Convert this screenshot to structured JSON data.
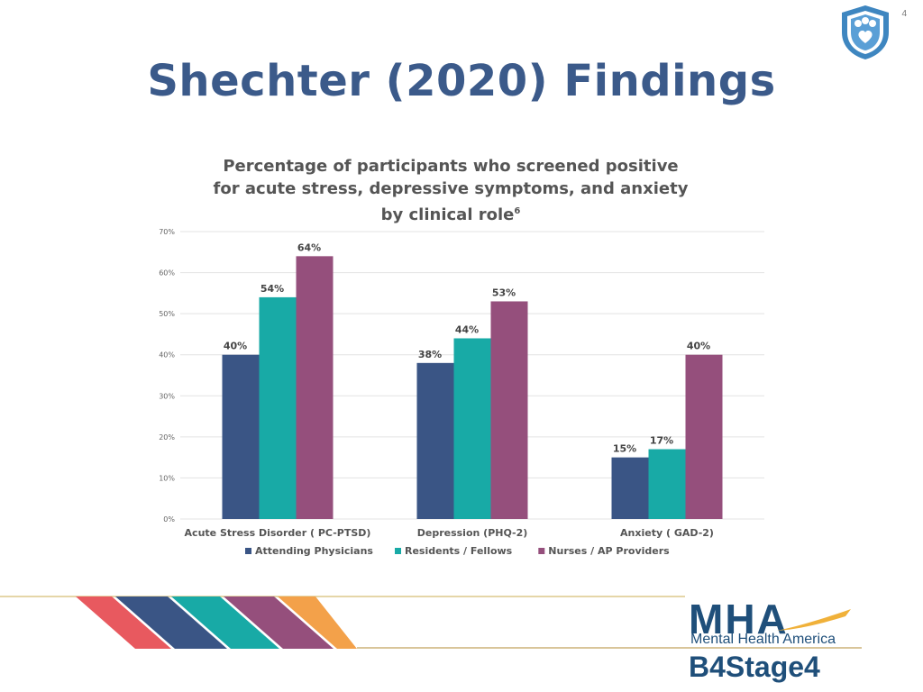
{
  "slide": {
    "page_number": "4",
    "title": "Shechter (2020) Findings"
  },
  "chart_title": {
    "text": "Percentage of participants who screened positive for acute stress, depressive symptoms, and anxiety by clinical role",
    "superscript": "6"
  },
  "logo": {
    "mark": "MHA",
    "tagline": "Mental Health America",
    "program": "B4Stage4"
  },
  "icons": {
    "top_right": "shield-heart-icon"
  },
  "colors": {
    "title": "#3b5a8a",
    "attending": "#3a5585",
    "residents": "#18aaa6",
    "nurses": "#954f7c"
  },
  "chart_data": {
    "type": "bar",
    "categories": [
      "Acute Stress Disorder ( PC-PTSD)",
      "Depression (PHQ-2)",
      "Anxiety ( GAD-2)"
    ],
    "series": [
      {
        "name": "Attending Physicians",
        "values": [
          40,
          38,
          15
        ]
      },
      {
        "name": "Residents / Fellows",
        "values": [
          54,
          44,
          17
        ]
      },
      {
        "name": "Nurses / AP Providers",
        "values": [
          64,
          53,
          40
        ]
      }
    ],
    "ylim": [
      0,
      70
    ],
    "yticks": [
      "0%",
      "10%",
      "20%",
      "30%",
      "40%",
      "50%",
      "60%",
      "70%"
    ],
    "value_suffix": "%",
    "grid": true,
    "legend_position": "bottom"
  }
}
